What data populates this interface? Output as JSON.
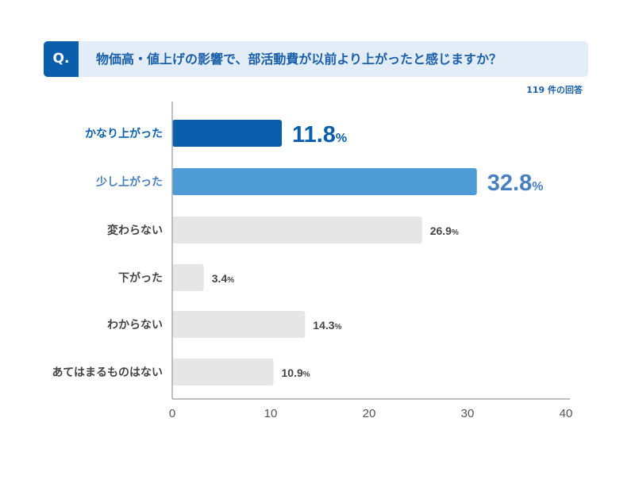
{
  "question": {
    "mark": "Q.",
    "text": "物価高・値上げの影響で、部活動費が以前より上がったと感じますか？"
  },
  "response_count": "119 件の回答",
  "colors": {
    "dark_blue": "#0a5eab",
    "light_blue": "#4f9bd6",
    "gray_bar": "#e6e6e6",
    "gray_text": "#444444",
    "light_blue_text": "#4a7fc0"
  },
  "chart_data": {
    "type": "bar",
    "orientation": "horizontal",
    "categories": [
      "かなり上がった",
      "少し上がった",
      "変わらない",
      "下がった",
      "わからない",
      "あてはまるものはない"
    ],
    "values": [
      11.8,
      32.8,
      26.9,
      3.4,
      14.3,
      10.9
    ],
    "value_suffix": "%",
    "xlim": [
      0,
      40
    ],
    "xticks": [
      0,
      10,
      20,
      30,
      40
    ],
    "grid": false
  }
}
